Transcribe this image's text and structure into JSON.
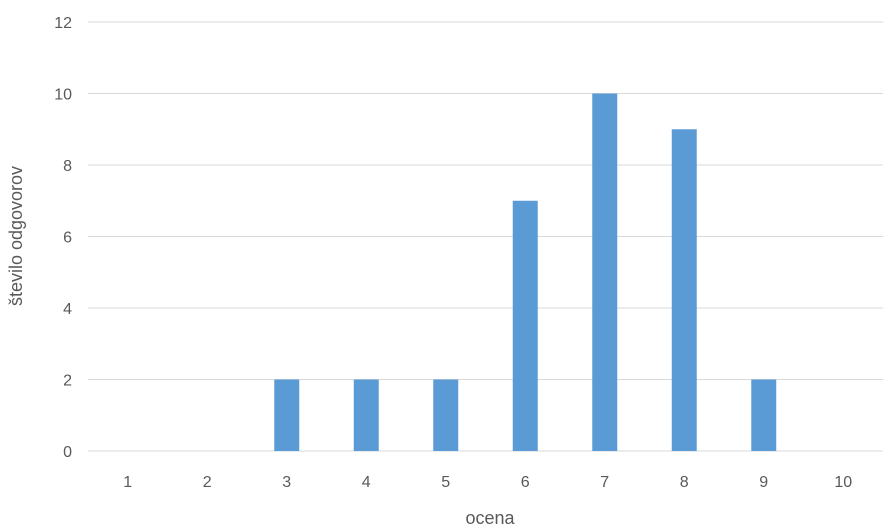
{
  "chart_data": {
    "type": "bar",
    "title": "",
    "xlabel": "ocena",
    "ylabel": "število odgovorov",
    "categories": [
      "1",
      "2",
      "3",
      "4",
      "5",
      "6",
      "7",
      "8",
      "9",
      "10"
    ],
    "values": [
      0,
      0,
      2,
      2,
      2,
      7,
      10,
      9,
      2,
      0
    ],
    "ylim": [
      0,
      12
    ],
    "yticks": [
      "0",
      "2",
      "4",
      "6",
      "8",
      "10",
      "12"
    ],
    "grid": true,
    "legend": "none",
    "bar_color": "#5b9bd5"
  }
}
